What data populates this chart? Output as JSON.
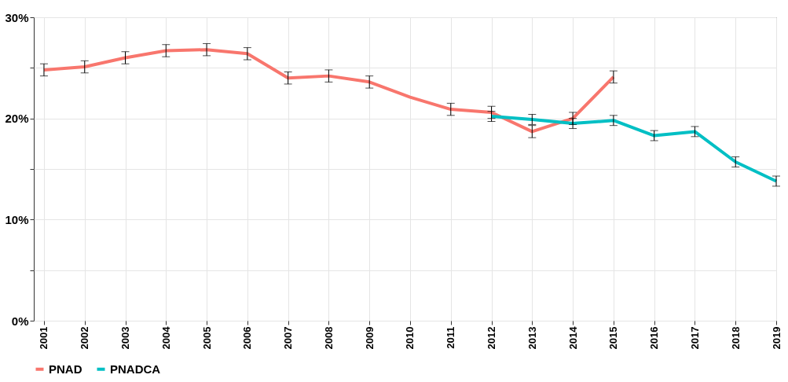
{
  "chart_data": {
    "type": "line",
    "categories": [
      "2001",
      "2002",
      "2003",
      "2004",
      "2005",
      "2006",
      "2007",
      "2008",
      "2009",
      "2010",
      "2011",
      "2012",
      "2013",
      "2014",
      "2015",
      "2016",
      "2017",
      "2018",
      "2019"
    ],
    "series": [
      {
        "name": "PNAD",
        "color": "#f8766d",
        "values": [
          24.8,
          25.1,
          26.0,
          26.7,
          26.8,
          26.4,
          24.0,
          24.2,
          23.6,
          22.1,
          20.9,
          20.6,
          18.7,
          20.0,
          24.1,
          null,
          null,
          null,
          null
        ],
        "errors": [
          0.6,
          0.6,
          0.6,
          0.6,
          0.6,
          0.6,
          0.6,
          0.6,
          0.6,
          null,
          0.6,
          0.6,
          0.6,
          0.6,
          0.6,
          null,
          null,
          null,
          null
        ]
      },
      {
        "name": "PNADCA",
        "color": "#00bfc4",
        "values": [
          null,
          null,
          null,
          null,
          null,
          null,
          null,
          null,
          null,
          null,
          null,
          20.2,
          19.9,
          19.5,
          19.8,
          18.3,
          18.7,
          15.7,
          13.8
        ],
        "errors": [
          null,
          null,
          null,
          null,
          null,
          null,
          null,
          null,
          null,
          null,
          null,
          0.5,
          0.5,
          0.5,
          0.5,
          0.5,
          0.5,
          0.5,
          0.5
        ]
      }
    ],
    "ylim": [
      0,
      30
    ],
    "yticks": [
      {
        "value": 0,
        "label": "0%"
      },
      {
        "value": 5,
        "label": null
      },
      {
        "value": 10,
        "label": "10%"
      },
      {
        "value": 15,
        "label": null
      },
      {
        "value": 20,
        "label": "20%"
      },
      {
        "value": 25,
        "label": null
      },
      {
        "value": 30,
        "label": "30%"
      }
    ],
    "grid": true,
    "legend": "bottom",
    "marker": "none",
    "line_style": "solid"
  }
}
